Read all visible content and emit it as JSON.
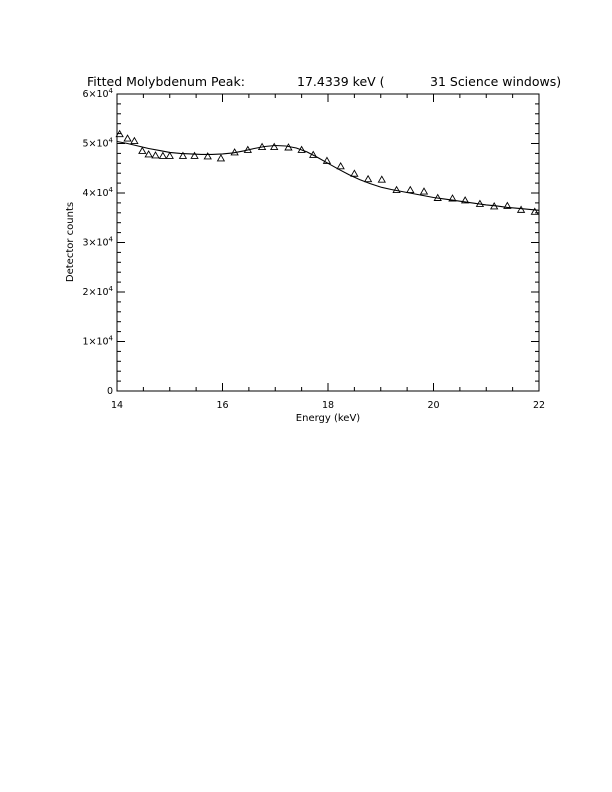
{
  "chart_data": {
    "type": "scatter",
    "title_parts": {
      "label": "Fitted Molybdenum Peak:",
      "energy": "17.4339 keV (",
      "windows": "31 Science windows)"
    },
    "xlabel": "Energy (keV)",
    "ylabel": "Detector counts",
    "xlim": [
      14,
      22
    ],
    "ylim": [
      0,
      60000
    ],
    "x_ticks": [
      {
        "value": 14,
        "label": "14"
      },
      {
        "value": 16,
        "label": "16"
      },
      {
        "value": 18,
        "label": "18"
      },
      {
        "value": 20,
        "label": "20"
      },
      {
        "value": 22,
        "label": "22"
      }
    ],
    "y_ticks": [
      {
        "value": 0,
        "mantissa": "0",
        "exponent": ""
      },
      {
        "value": 10000,
        "mantissa": "1×10",
        "exponent": "4"
      },
      {
        "value": 20000,
        "mantissa": "2×10",
        "exponent": "4"
      },
      {
        "value": 30000,
        "mantissa": "3×10",
        "exponent": "4"
      },
      {
        "value": 40000,
        "mantissa": "4×10",
        "exponent": "4"
      },
      {
        "value": 50000,
        "mantissa": "5×10",
        "exponent": "4"
      },
      {
        "value": 60000,
        "mantissa": "6×10",
        "exponent": "4"
      }
    ],
    "series": [
      {
        "marker": "triangle",
        "x": [
          14.05,
          14.2,
          14.33,
          14.48,
          14.6,
          14.73,
          14.87,
          15.0,
          15.25,
          15.47,
          15.72,
          15.97,
          16.23,
          16.48,
          16.75,
          16.98,
          17.25,
          17.5,
          17.72,
          17.98,
          18.24,
          18.5,
          18.76,
          19.02,
          19.3,
          19.56,
          19.82,
          20.08,
          20.36,
          20.6,
          20.88,
          21.15,
          21.4,
          21.66,
          21.92
        ],
        "y": [
          51900,
          51000,
          50500,
          48500,
          47800,
          47600,
          47500,
          47500,
          47500,
          47500,
          47400,
          47000,
          48200,
          48700,
          49300,
          49300,
          49200,
          48700,
          47700,
          46500,
          45400,
          43900,
          42800,
          42700,
          40600,
          40600,
          40300,
          39000,
          38900,
          38500,
          37800,
          37300,
          37400,
          36600,
          36200
        ]
      },
      {
        "style": "line",
        "x": [
          14.0,
          14.2,
          14.4,
          14.6,
          14.8,
          15.0,
          15.2,
          15.4,
          15.6,
          15.8,
          16.0,
          16.2,
          16.4,
          16.6,
          16.8,
          17.0,
          17.2,
          17.4,
          17.6,
          17.8,
          18.0,
          18.2,
          18.4,
          18.6,
          18.8,
          19.0,
          19.2,
          19.4,
          19.6,
          19.8,
          20.0,
          20.2,
          20.4,
          20.6,
          20.8,
          21.0,
          21.2,
          21.4,
          21.6,
          21.8,
          22.0
        ],
        "y": [
          50400,
          50000,
          49500,
          49000,
          48600,
          48200,
          48000,
          47900,
          47800,
          47800,
          47900,
          48100,
          48500,
          49000,
          49400,
          49600,
          49500,
          49100,
          48300,
          47200,
          46000,
          44800,
          43700,
          42700,
          41900,
          41200,
          40700,
          40300,
          39900,
          39500,
          39100,
          38800,
          38500,
          38200,
          37900,
          37600,
          37400,
          37100,
          36900,
          36700,
          36500
        ]
      }
    ]
  }
}
